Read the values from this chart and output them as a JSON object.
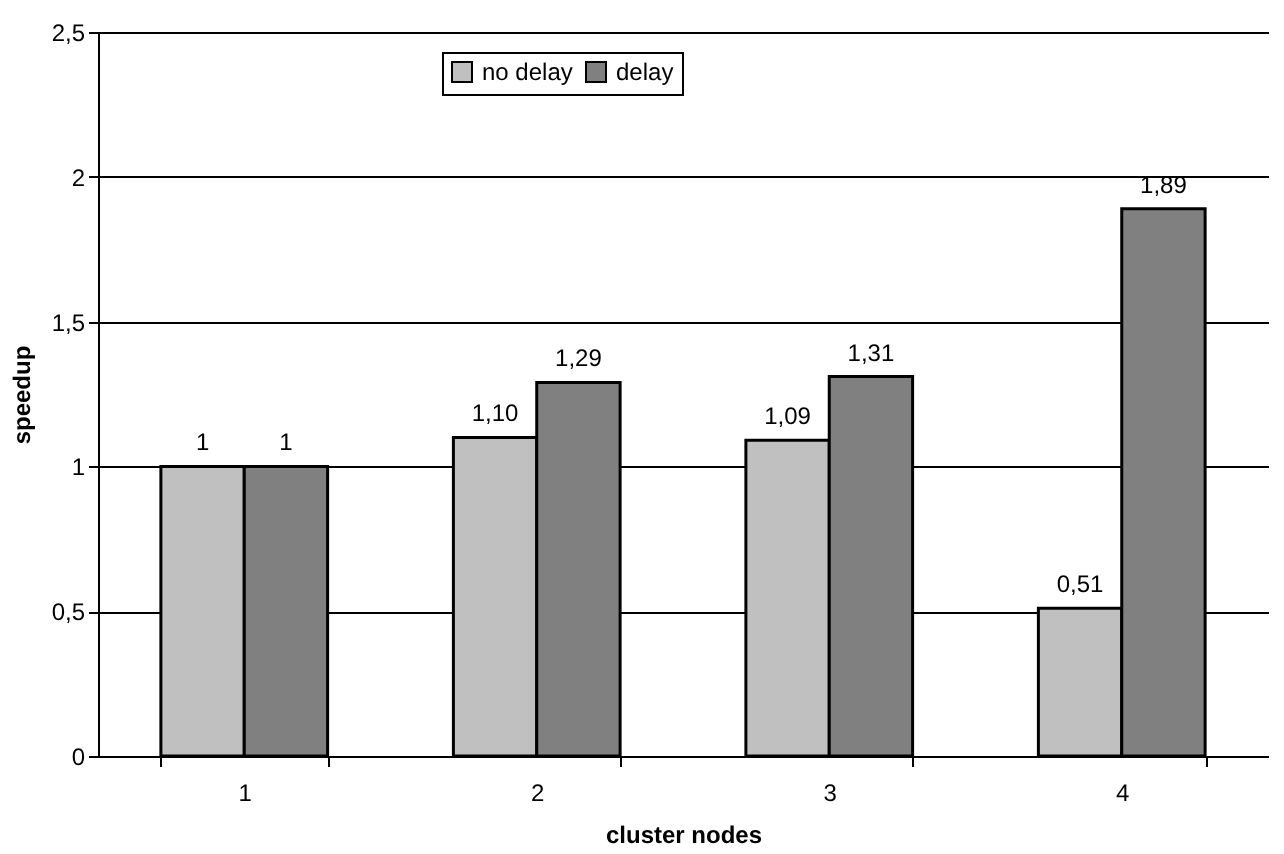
{
  "chart_data": {
    "type": "bar",
    "xlabel": "cluster nodes",
    "ylabel": "speedup",
    "categories": [
      "1",
      "2",
      "3",
      "4"
    ],
    "series": [
      {
        "name": "no delay",
        "color": "#c0c0c0",
        "values": [
          1,
          1.1,
          1.09,
          0.51
        ],
        "value_labels": [
          "1",
          "1,10",
          "1,09",
          "0,51"
        ]
      },
      {
        "name": "delay",
        "color": "#808080",
        "values": [
          1,
          1.29,
          1.31,
          1.89
        ],
        "value_labels": [
          "1",
          "1,29",
          "1,31",
          "1,89"
        ]
      }
    ],
    "ylim": [
      0,
      2.5
    ],
    "yticks": [
      0,
      {
        "value": 0.5,
        "label": "0,5"
      },
      1,
      {
        "value": 1.5,
        "label": "1,5"
      },
      2,
      {
        "value": 2.5,
        "label": "2,5"
      }
    ],
    "grid": "y",
    "legend": "top"
  }
}
